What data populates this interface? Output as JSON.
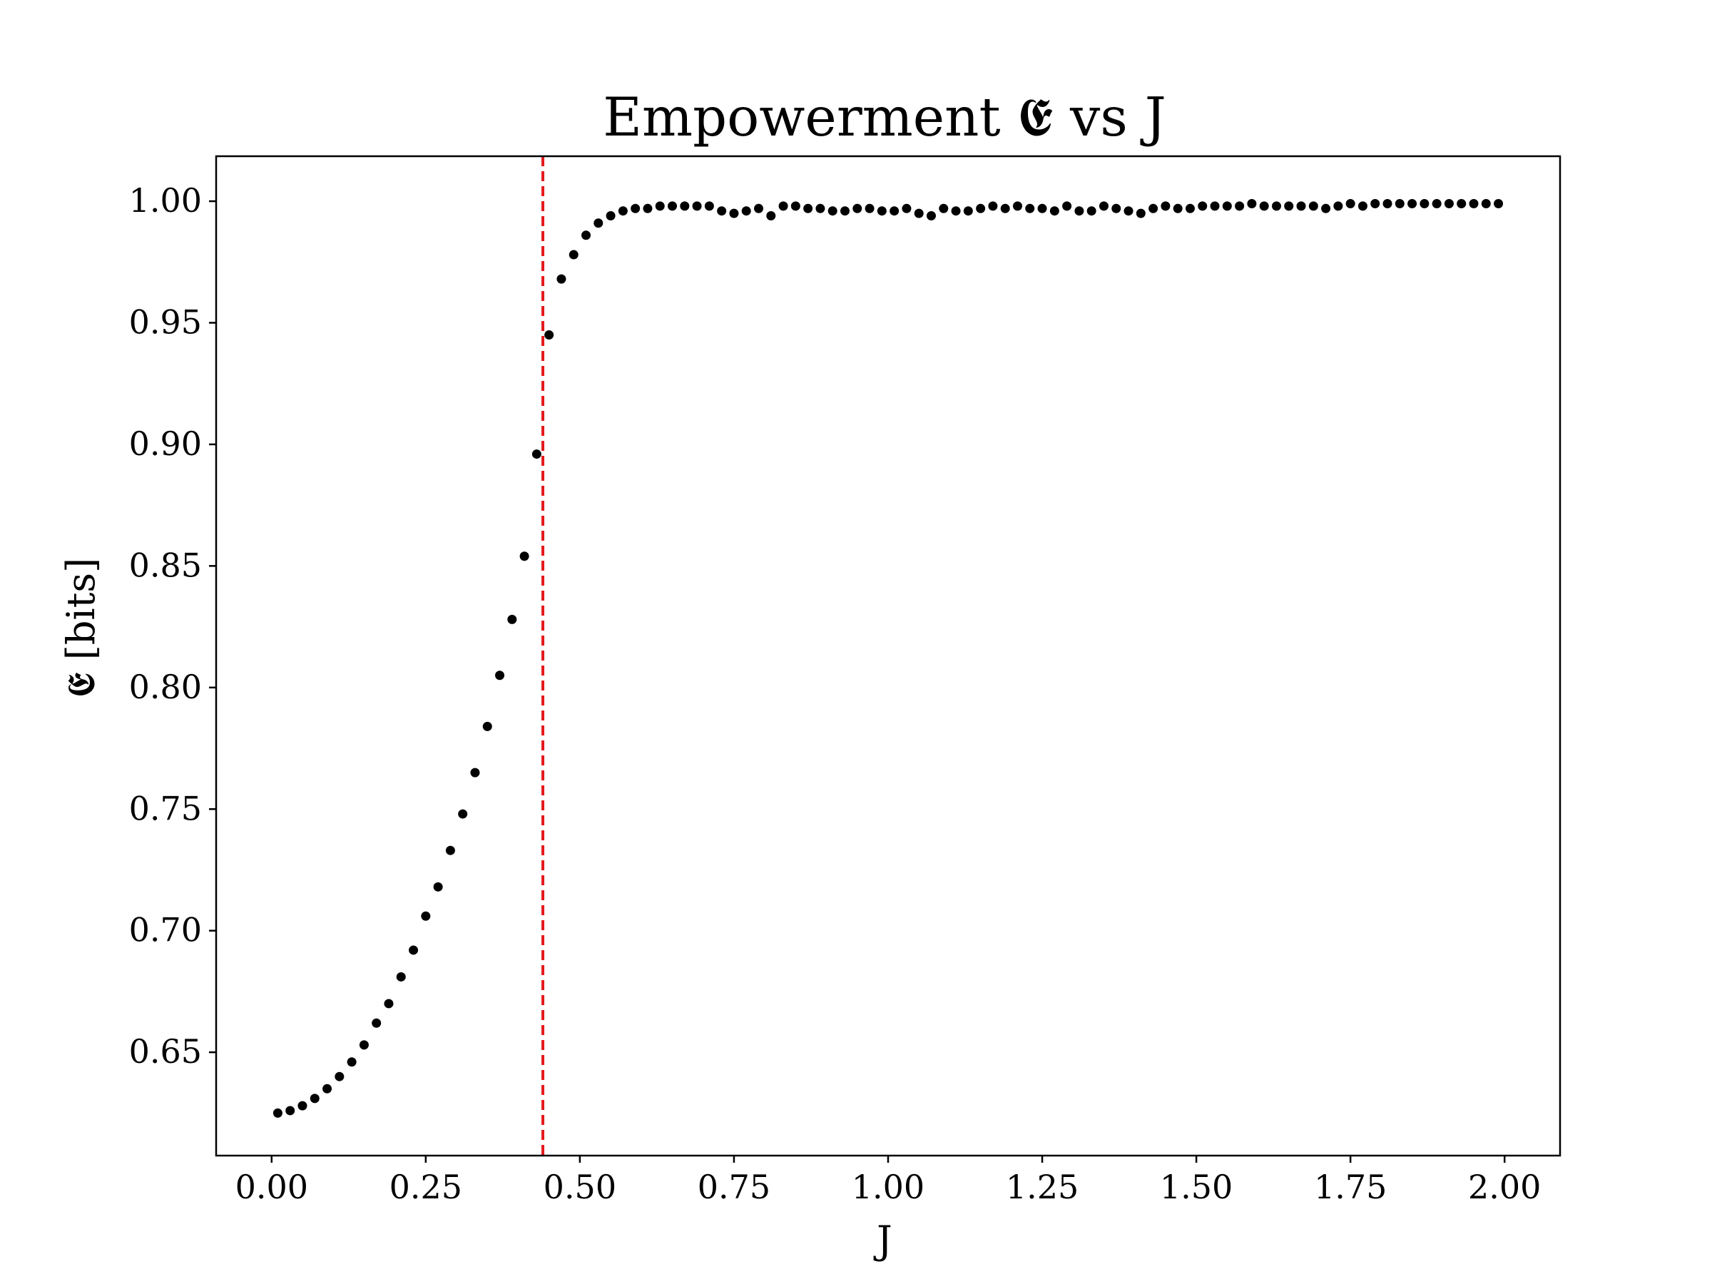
{
  "chart_data": {
    "type": "scatter",
    "title": "Empowerment 𝕰 vs J",
    "xlabel": "J",
    "ylabel": "𝕰 [bits]",
    "xlim": [
      -0.09,
      2.09
    ],
    "ylim": [
      0.6075,
      1.0185
    ],
    "xticks": [
      0.0,
      0.25,
      0.5,
      0.75,
      1.0,
      1.25,
      1.5,
      1.75,
      2.0
    ],
    "xtick_labels": [
      "0.00",
      "0.25",
      "0.50",
      "0.75",
      "1.00",
      "1.25",
      "1.50",
      "1.75",
      "2.00"
    ],
    "yticks": [
      0.65,
      0.7,
      0.75,
      0.8,
      0.85,
      0.9,
      0.95,
      1.0
    ],
    "ytick_labels": [
      "0.65",
      "0.70",
      "0.75",
      "0.80",
      "0.85",
      "0.90",
      "0.95",
      "1.00"
    ],
    "grid": false,
    "marker_color": "#000000",
    "critical_line": {
      "x": 0.44,
      "color": "#e31a1c",
      "style": "dashed"
    },
    "series": [
      {
        "x": [
          0.01,
          0.03,
          0.05,
          0.07,
          0.09,
          0.11,
          0.13,
          0.15,
          0.17,
          0.19,
          0.21,
          0.23,
          0.25,
          0.27,
          0.29,
          0.31,
          0.33,
          0.35,
          0.37,
          0.39,
          0.41,
          0.43,
          0.45,
          0.47,
          0.49,
          0.51,
          0.53,
          0.55,
          0.57,
          0.59,
          0.61,
          0.63,
          0.65,
          0.67,
          0.69,
          0.71,
          0.73,
          0.75,
          0.77,
          0.79,
          0.81,
          0.83,
          0.85,
          0.87,
          0.89,
          0.91,
          0.93,
          0.95,
          0.97,
          0.99,
          1.01,
          1.03,
          1.05,
          1.07,
          1.09,
          1.11,
          1.13,
          1.15,
          1.17,
          1.19,
          1.21,
          1.23,
          1.25,
          1.27,
          1.29,
          1.31,
          1.33,
          1.35,
          1.37,
          1.39,
          1.41,
          1.43,
          1.45,
          1.47,
          1.49,
          1.51,
          1.53,
          1.55,
          1.57,
          1.59,
          1.61,
          1.63,
          1.65,
          1.67,
          1.69,
          1.71,
          1.73,
          1.75,
          1.77,
          1.79,
          1.81,
          1.83,
          1.85,
          1.87,
          1.89,
          1.91,
          1.93,
          1.95,
          1.97,
          1.99
        ],
        "y": [
          0.625,
          0.626,
          0.628,
          0.631,
          0.635,
          0.64,
          0.646,
          0.653,
          0.662,
          0.67,
          0.681,
          0.692,
          0.706,
          0.718,
          0.733,
          0.748,
          0.765,
          0.784,
          0.805,
          0.828,
          0.854,
          0.896,
          0.945,
          0.968,
          0.978,
          0.986,
          0.991,
          0.994,
          0.996,
          0.997,
          0.997,
          0.998,
          0.998,
          0.998,
          0.998,
          0.998,
          0.996,
          0.995,
          0.996,
          0.997,
          0.994,
          0.998,
          0.998,
          0.997,
          0.997,
          0.996,
          0.996,
          0.997,
          0.997,
          0.996,
          0.996,
          0.997,
          0.995,
          0.994,
          0.997,
          0.996,
          0.996,
          0.997,
          0.998,
          0.997,
          0.998,
          0.997,
          0.997,
          0.996,
          0.998,
          0.996,
          0.996,
          0.998,
          0.997,
          0.996,
          0.995,
          0.997,
          0.998,
          0.997,
          0.997,
          0.998,
          0.998,
          0.998,
          0.998,
          0.999,
          0.998,
          0.998,
          0.998,
          0.998,
          0.998,
          0.997,
          0.998,
          0.999,
          0.998,
          0.999,
          0.999,
          0.999,
          0.999,
          0.999,
          0.999,
          0.999,
          0.999,
          0.999,
          0.999,
          0.999
        ]
      }
    ]
  }
}
